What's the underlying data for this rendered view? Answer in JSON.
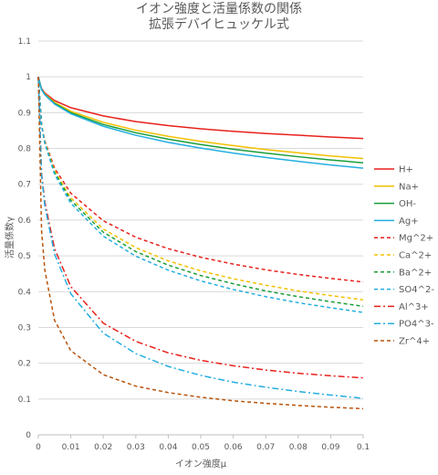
{
  "chart_data": {
    "type": "line",
    "title": "イオン強度と活量係数の関係",
    "subtitle": "拡張デバイヒュッケル式",
    "xlabel": "イオン強度μ",
    "ylabel": "活量係数γ",
    "xlim": [
      0,
      0.1
    ],
    "ylim": [
      0,
      1.1
    ],
    "x_ticks": [
      "0",
      "0.01",
      "0.02",
      "0.03",
      "0.04",
      "0.05",
      "0.06",
      "0.07",
      "0.08",
      "0.09",
      "0.1"
    ],
    "y_ticks": [
      "0",
      "0.1",
      "0.2",
      "0.3",
      "0.4",
      "0.5",
      "0.6",
      "0.7",
      "0.8",
      "0.9",
      "1",
      "1.1"
    ],
    "grid": "horizontal",
    "legend_position": "right",
    "x": [
      0,
      0.001,
      0.002,
      0.005,
      0.01,
      0.02,
      0.03,
      0.04,
      0.05,
      0.06,
      0.07,
      0.08,
      0.09,
      0.1
    ],
    "series": [
      {
        "name": "H+",
        "color": "#e8211c",
        "dash": "solid",
        "values": [
          1.0,
          0.967,
          0.955,
          0.934,
          0.914,
          0.891,
          0.875,
          0.864,
          0.855,
          0.848,
          0.842,
          0.837,
          0.832,
          0.828
        ]
      },
      {
        "name": "Na+",
        "color": "#f2c000",
        "dash": "solid",
        "values": [
          1.0,
          0.965,
          0.952,
          0.929,
          0.904,
          0.873,
          0.851,
          0.834,
          0.82,
          0.808,
          0.797,
          0.788,
          0.779,
          0.772
        ]
      },
      {
        "name": "OH-",
        "color": "#1a9e3a",
        "dash": "solid",
        "values": [
          1.0,
          0.965,
          0.951,
          0.926,
          0.9,
          0.867,
          0.844,
          0.826,
          0.811,
          0.798,
          0.787,
          0.777,
          0.768,
          0.76
        ]
      },
      {
        "name": "Ag+",
        "color": "#23aee0",
        "dash": "solid",
        "values": [
          1.0,
          0.964,
          0.95,
          0.924,
          0.897,
          0.862,
          0.837,
          0.817,
          0.801,
          0.787,
          0.775,
          0.764,
          0.754,
          0.745
        ]
      },
      {
        "name": "Mg^2+",
        "color": "#e8211c",
        "dash": "dash",
        "values": [
          1.0,
          0.866,
          0.821,
          0.745,
          0.675,
          0.598,
          0.552,
          0.52,
          0.496,
          0.477,
          0.461,
          0.448,
          0.437,
          0.427
        ]
      },
      {
        "name": "Ca^2+",
        "color": "#f2c000",
        "dash": "dash",
        "values": [
          1.0,
          0.866,
          0.818,
          0.738,
          0.662,
          0.575,
          0.523,
          0.486,
          0.458,
          0.436,
          0.418,
          0.402,
          0.389,
          0.377
        ]
      },
      {
        "name": "Ba^2+",
        "color": "#1a9e3a",
        "dash": "dash",
        "values": [
          1.0,
          0.865,
          0.816,
          0.733,
          0.655,
          0.566,
          0.512,
          0.474,
          0.445,
          0.422,
          0.402,
          0.386,
          0.372,
          0.359
        ]
      },
      {
        "name": "SO4^2-",
        "color": "#23aee0",
        "dash": "dash",
        "values": [
          1.0,
          0.864,
          0.814,
          0.728,
          0.647,
          0.555,
          0.499,
          0.46,
          0.43,
          0.406,
          0.386,
          0.369,
          0.355,
          0.342
        ]
      },
      {
        "name": "Al^3+",
        "color": "#e8211c",
        "dash": "dashdot",
        "values": [
          1.0,
          0.73,
          0.65,
          0.52,
          0.414,
          0.312,
          0.261,
          0.229,
          0.208,
          0.193,
          0.181,
          0.172,
          0.165,
          0.159
        ]
      },
      {
        "name": "PO4^3-",
        "color": "#23aee0",
        "dash": "dashdot",
        "values": [
          1.0,
          0.725,
          0.64,
          0.505,
          0.394,
          0.284,
          0.227,
          0.191,
          0.166,
          0.147,
          0.133,
          0.121,
          0.111,
          0.102
        ]
      },
      {
        "name": "Zr^4+",
        "color": "#b9540c",
        "dash": "dash",
        "values": [
          1.0,
          0.57,
          0.46,
          0.32,
          0.235,
          0.168,
          0.136,
          0.118,
          0.105,
          0.095,
          0.088,
          0.082,
          0.077,
          0.073
        ]
      }
    ]
  }
}
